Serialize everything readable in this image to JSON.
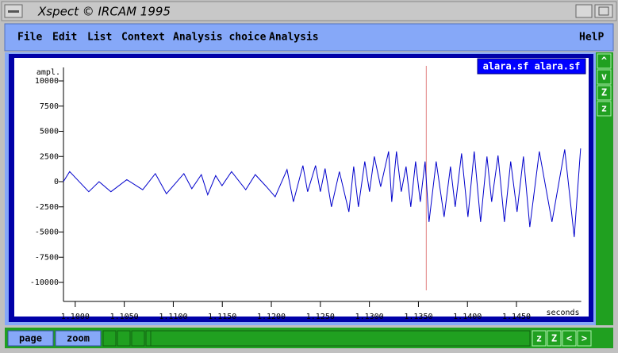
{
  "window": {
    "title": "Xspect © IRCAM 1995"
  },
  "menu": [
    "File",
    "Edit",
    "List",
    "Context",
    "Analysis choice",
    "Analysis"
  ],
  "help": "HelP",
  "side_buttons": [
    "^",
    "v",
    "Z",
    "z"
  ],
  "bottom_buttons": [
    "page",
    "zoom"
  ],
  "bottom_right_buttons": [
    "z",
    "Z",
    "<",
    ">"
  ],
  "chart_data": {
    "type": "line",
    "x_label": "seconds",
    "y_label": "ampl.",
    "x": [
      1.09879,
      1.09943,
      1.10138,
      1.10243,
      1.10364,
      1.10526,
      1.10688,
      1.10817,
      1.1093,
      1.11108,
      1.11189,
      1.11286,
      1.11351,
      1.11432,
      1.11497,
      1.11594,
      1.11739,
      1.11836,
      1.1195,
      1.12039,
      1.1216,
      1.12225,
      1.12322,
      1.1237,
      1.12451,
      1.125,
      1.12548,
      1.12613,
      1.12694,
      1.12791,
      1.1284,
      1.12888,
      1.12953,
      1.13001,
      1.1305,
      1.13115,
      1.13196,
      1.13228,
      1.13276,
      1.13325,
      1.13374,
      1.13422,
      1.13471,
      1.13519,
      1.13568,
      1.13608,
      1.13681,
      1.13762,
      1.13827,
      1.13875,
      1.1394,
      1.14005,
      1.14069,
      1.14134,
      1.14199,
      1.14247,
      1.14312,
      1.14377,
      1.14441,
      1.14506,
      1.14571,
      1.14636,
      1.14733,
      1.14862,
      1.14992,
      1.15089,
      1.15154
    ],
    "series": [
      {
        "name": "alara.sf alara.sf",
        "color": "#0000cc",
        "values": [
          0,
          1000,
          -1000,
          0,
          -1000,
          200,
          -800,
          800,
          -1200,
          800,
          -700,
          700,
          -1300,
          600,
          -400,
          1000,
          -800,
          700,
          -500,
          -1500,
          1200,
          -2000,
          1600,
          -1000,
          1600,
          -1000,
          1300,
          -2500,
          1000,
          -3000,
          1500,
          -2500,
          2000,
          -1000,
          2500,
          -500,
          3000,
          -2000,
          3000,
          -1000,
          1500,
          -2500,
          2000,
          -2000,
          2000,
          -4000,
          2000,
          -3500,
          1500,
          -2500,
          2800,
          -3500,
          3000,
          -4000,
          2500,
          -2000,
          2600,
          -4000,
          2000,
          -3000,
          2500,
          -4500,
          3000,
          -4000,
          3200,
          -5500,
          3300
        ]
      }
    ],
    "xlim": [
      1.0988,
      1.1516
    ],
    "ylim": [
      -11890,
      11340
    ],
    "xticks": [
      {
        "value": 1.1,
        "label": "1.1000"
      },
      {
        "value": 1.105,
        "label": "1.1050"
      },
      {
        "value": 1.11,
        "label": "1.1100"
      },
      {
        "value": 1.115,
        "label": "1.1150"
      },
      {
        "value": 1.12,
        "label": "1.1200"
      },
      {
        "value": 1.125,
        "label": "1.1250"
      },
      {
        "value": 1.13,
        "label": "1.1300"
      },
      {
        "value": 1.135,
        "label": "1.1350"
      },
      {
        "value": 1.14,
        "label": "1.1400"
      },
      {
        "value": 1.145,
        "label": "1.1450"
      }
    ],
    "yticks": [
      10000,
      7500,
      5000,
      2500,
      0,
      -2500,
      -5000,
      -7500,
      -10000
    ],
    "cursor_x": 1.1358,
    "cursor_color": "#e08080"
  }
}
